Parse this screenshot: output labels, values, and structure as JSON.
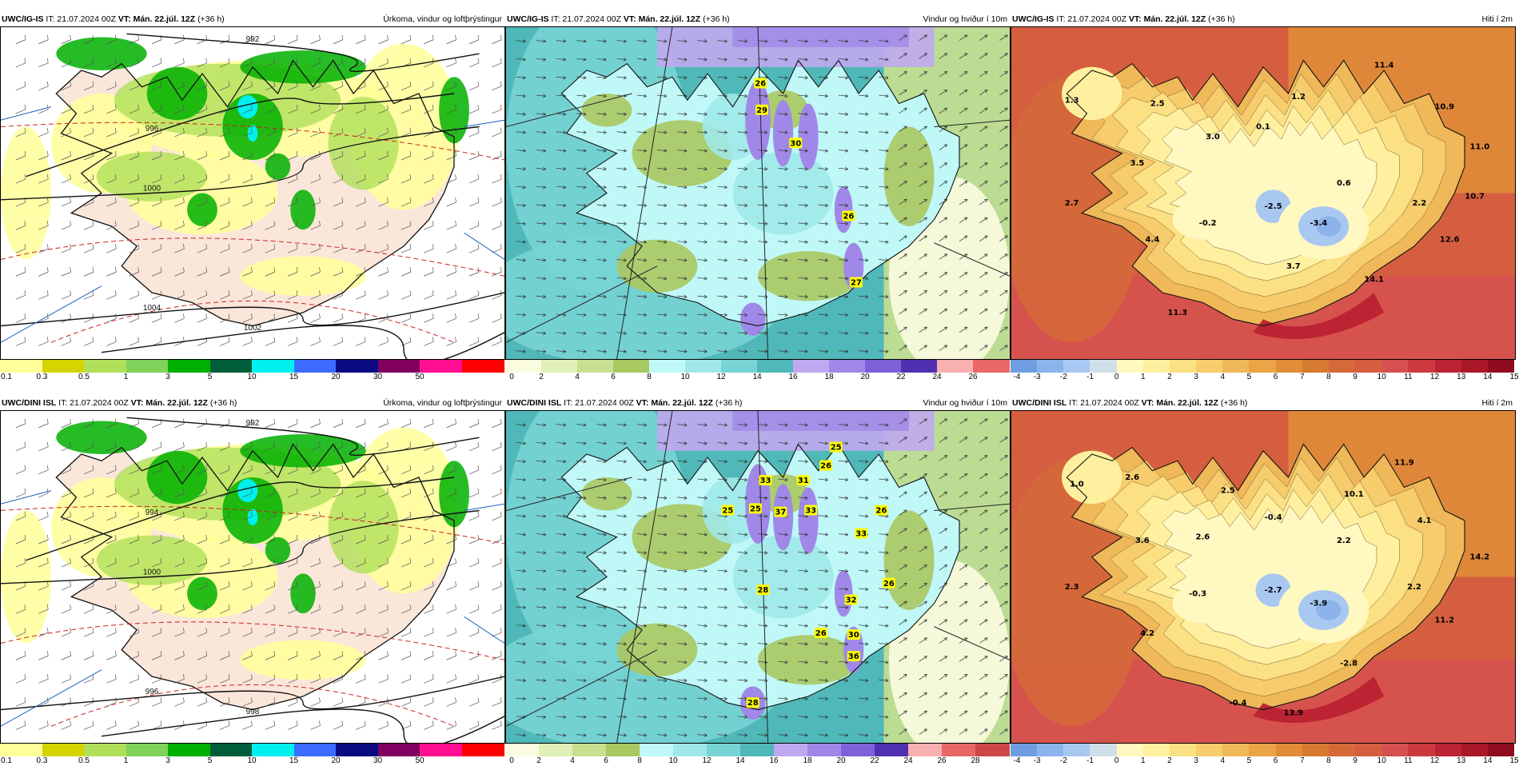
{
  "panels": [
    {
      "id": "p0",
      "model": "UWC/IG-IS",
      "it": "IT: 21.07.2024 00Z",
      "vt_label": "VT:",
      "vt": "Mán. 22.júl. 12Z",
      "lead": "(+36 h)",
      "product": "Úrkoma, vindur og loftþrýstingur",
      "type": "precip",
      "colors": [
        "#ffff99",
        "#d4d400",
        "#b0e05a",
        "#7fd25a",
        "#00b000",
        "#005e3a",
        "#00f0f0",
        "#3b6cff",
        "#0a0a80",
        "#800060",
        "#ff1090",
        "#ff0000"
      ],
      "labels": [
        "0.1",
        "0.3",
        "0.5",
        "1",
        "3",
        "5",
        "10",
        "15",
        "20",
        "30",
        "50"
      ],
      "isobars": [
        "992",
        "996",
        "1000",
        "1004",
        "1002"
      ],
      "values": []
    },
    {
      "id": "p1",
      "model": "UWC/IG-IS",
      "it": "IT: 21.07.2024 00Z",
      "vt_label": "VT:",
      "vt": "Mán. 22.júl. 12Z",
      "lead": "(+36 h)",
      "product": "Vindur og hviður í 10m",
      "type": "wind",
      "colors": [
        "#fbfbe0",
        "#e0f0b8",
        "#c8e090",
        "#a8c860",
        "#c0f8f8",
        "#a0e8e8",
        "#78d4d4",
        "#50b8b8",
        "#c0a8f0",
        "#a088e8",
        "#8060d8",
        "#5030b0",
        "#f8b0b0",
        "#e86868"
      ],
      "labels": [
        "0",
        "2",
        "4",
        "6",
        "8",
        "10",
        "12",
        "14",
        "16",
        "18",
        "20",
        "22",
        "24",
        "26"
      ],
      "values": [
        {
          "v": "26",
          "x": 0.505,
          "y": 0.17
        },
        {
          "v": "29",
          "x": 0.508,
          "y": 0.25
        },
        {
          "v": "30",
          "x": 0.575,
          "y": 0.35
        },
        {
          "v": "26",
          "x": 0.68,
          "y": 0.57
        },
        {
          "v": "27",
          "x": 0.695,
          "y": 0.77
        }
      ]
    },
    {
      "id": "p2",
      "model": "UWC/IG-IS",
      "it": "IT: 21.07.2024 00Z",
      "vt_label": "VT:",
      "vt": "Mán. 22.júl. 12Z",
      "lead": "(+36 h)",
      "product": "Hiti í 2m",
      "type": "temp",
      "colors": [
        "#6e9ee0",
        "#8cb4ea",
        "#a8c8f2",
        "#d0e0e8",
        "#fff8c0",
        "#fff0a0",
        "#fbe084",
        "#f6cc6c",
        "#efb858",
        "#e9a446",
        "#e08c38",
        "#d67a30",
        "#d46a38",
        "#d65e40",
        "#d65050",
        "#cc3a40",
        "#bc2434",
        "#a81828",
        "#8e0c1e"
      ],
      "labels": [
        "-4",
        "-3",
        "-2",
        "-1",
        "0",
        "1",
        "2",
        "3",
        "4",
        "5",
        "6",
        "7",
        "8",
        "9",
        "10",
        "11",
        "12",
        "13",
        "14",
        "15"
      ],
      "values": [
        {
          "v": "1.3",
          "x": 0.12,
          "y": 0.22
        },
        {
          "v": "2.5",
          "x": 0.29,
          "y": 0.23
        },
        {
          "v": "1.2",
          "x": 0.57,
          "y": 0.21
        },
        {
          "v": "11.4",
          "x": 0.74,
          "y": 0.115
        },
        {
          "v": "10.9",
          "x": 0.86,
          "y": 0.24
        },
        {
          "v": "0.1",
          "x": 0.5,
          "y": 0.3
        },
        {
          "v": "3.0",
          "x": 0.4,
          "y": 0.33
        },
        {
          "v": "11.0",
          "x": 0.93,
          "y": 0.36
        },
        {
          "v": "3.5",
          "x": 0.25,
          "y": 0.41
        },
        {
          "v": "0.6",
          "x": 0.66,
          "y": 0.47
        },
        {
          "v": "2.7",
          "x": 0.12,
          "y": 0.53
        },
        {
          "v": "10.7",
          "x": 0.92,
          "y": 0.51
        },
        {
          "v": "2.2",
          "x": 0.81,
          "y": 0.53
        },
        {
          "v": "-0.2",
          "x": 0.39,
          "y": 0.59
        },
        {
          "v": "-2.5",
          "x": 0.52,
          "y": 0.54
        },
        {
          "v": "-3.4",
          "x": 0.61,
          "y": 0.59
        },
        {
          "v": "4.4",
          "x": 0.28,
          "y": 0.64
        },
        {
          "v": "12.6",
          "x": 0.87,
          "y": 0.64
        },
        {
          "v": "3.7",
          "x": 0.56,
          "y": 0.72
        },
        {
          "v": "14.1",
          "x": 0.72,
          "y": 0.76
        },
        {
          "v": "11.3",
          "x": 0.33,
          "y": 0.86
        }
      ]
    },
    {
      "id": "p3",
      "model": "UWC/DINI ISL",
      "it": "IT: 21.07.2024 00Z",
      "vt_label": "VT:",
      "vt": "Mán. 22.júl. 12Z",
      "lead": "(+36 h)",
      "product": "Úrkoma, vindur og loftþrýstingur",
      "type": "precip",
      "colors": [
        "#ffff99",
        "#d4d400",
        "#b0e05a",
        "#7fd25a",
        "#00b000",
        "#005e3a",
        "#00f0f0",
        "#3b6cff",
        "#0a0a80",
        "#800060",
        "#ff1090",
        "#ff0000"
      ],
      "labels": [
        "0.1",
        "0.3",
        "0.5",
        "1",
        "3",
        "5",
        "10",
        "15",
        "20",
        "30",
        "50"
      ],
      "isobars": [
        "992",
        "994",
        "1000",
        "996",
        "998"
      ],
      "values": []
    },
    {
      "id": "p4",
      "model": "UWC/DINI ISL",
      "it": "IT: 21.07.2024 00Z",
      "vt_label": "VT:",
      "vt": "Mán. 22.júl. 12Z",
      "lead": "(+36 h)",
      "product": "Vindur og hviður í 10m",
      "type": "wind",
      "colors": [
        "#fbfbe0",
        "#e0f0b8",
        "#c8e090",
        "#a8c860",
        "#c0f8f8",
        "#a0e8e8",
        "#78d4d4",
        "#50b8b8",
        "#c0a8f0",
        "#a088e8",
        "#8060d8",
        "#5030b0",
        "#f8b0b0",
        "#e86868",
        "#cc4848"
      ],
      "labels": [
        "0",
        "2",
        "4",
        "6",
        "8",
        "10",
        "12",
        "14",
        "16",
        "18",
        "20",
        "22",
        "24",
        "26",
        "28"
      ],
      "values": [
        {
          "v": "25",
          "x": 0.655,
          "y": 0.11
        },
        {
          "v": "26",
          "x": 0.635,
          "y": 0.165
        },
        {
          "v": "33",
          "x": 0.515,
          "y": 0.21
        },
        {
          "v": "31",
          "x": 0.59,
          "y": 0.21
        },
        {
          "v": "25",
          "x": 0.44,
          "y": 0.3
        },
        {
          "v": "25",
          "x": 0.495,
          "y": 0.295
        },
        {
          "v": "37",
          "x": 0.545,
          "y": 0.305
        },
        {
          "v": "33",
          "x": 0.605,
          "y": 0.3
        },
        {
          "v": "26",
          "x": 0.745,
          "y": 0.3
        },
        {
          "v": "33",
          "x": 0.705,
          "y": 0.37
        },
        {
          "v": "28",
          "x": 0.51,
          "y": 0.54
        },
        {
          "v": "26",
          "x": 0.76,
          "y": 0.52
        },
        {
          "v": "32",
          "x": 0.685,
          "y": 0.57
        },
        {
          "v": "26",
          "x": 0.625,
          "y": 0.67
        },
        {
          "v": "30",
          "x": 0.69,
          "y": 0.675
        },
        {
          "v": "36",
          "x": 0.69,
          "y": 0.74
        },
        {
          "v": "28",
          "x": 0.49,
          "y": 0.88
        }
      ]
    },
    {
      "id": "p5",
      "model": "UWC/DINI ISL",
      "it": "IT: 21.07.2024 00Z",
      "vt_label": "VT:",
      "vt": "Mán. 22.júl. 12Z",
      "lead": "(+36 h)",
      "product": "Hiti í 2m",
      "type": "temp",
      "colors": [
        "#6e9ee0",
        "#8cb4ea",
        "#a8c8f2",
        "#d0e0e8",
        "#fff8c0",
        "#fff0a0",
        "#fbe084",
        "#f6cc6c",
        "#efb858",
        "#e9a446",
        "#e08c38",
        "#d67a30",
        "#d46a38",
        "#d65e40",
        "#d65050",
        "#cc3a40",
        "#bc2434",
        "#a81828",
        "#8e0c1e"
      ],
      "labels": [
        "-4",
        "-3",
        "-2",
        "-1",
        "0",
        "1",
        "2",
        "3",
        "4",
        "5",
        "6",
        "7",
        "8",
        "9",
        "10",
        "11",
        "12",
        "13",
        "14",
        "15"
      ],
      "values": [
        {
          "v": "1.0",
          "x": 0.13,
          "y": 0.22
        },
        {
          "v": "2.6",
          "x": 0.24,
          "y": 0.2
        },
        {
          "v": "11.9",
          "x": 0.78,
          "y": 0.155
        },
        {
          "v": "2.5",
          "x": 0.43,
          "y": 0.24
        },
        {
          "v": "10.1",
          "x": 0.68,
          "y": 0.25
        },
        {
          "v": "-0.4",
          "x": 0.52,
          "y": 0.32
        },
        {
          "v": "4.1",
          "x": 0.82,
          "y": 0.33
        },
        {
          "v": "3.6",
          "x": 0.26,
          "y": 0.39
        },
        {
          "v": "2.6",
          "x": 0.38,
          "y": 0.38
        },
        {
          "v": "2.2",
          "x": 0.66,
          "y": 0.39
        },
        {
          "v": "14.2",
          "x": 0.93,
          "y": 0.44
        },
        {
          "v": "2.3",
          "x": 0.12,
          "y": 0.53
        },
        {
          "v": "-0.3",
          "x": 0.37,
          "y": 0.55
        },
        {
          "v": "-2.7",
          "x": 0.52,
          "y": 0.54
        },
        {
          "v": "-3.9",
          "x": 0.61,
          "y": 0.58
        },
        {
          "v": "2.2",
          "x": 0.8,
          "y": 0.53
        },
        {
          "v": "11.2",
          "x": 0.86,
          "y": 0.63
        },
        {
          "v": "4.2",
          "x": 0.27,
          "y": 0.67
        },
        {
          "v": "-2.8",
          "x": 0.67,
          "y": 0.76
        },
        {
          "v": "-0.4",
          "x": 0.45,
          "y": 0.88
        },
        {
          "v": "13.9",
          "x": 0.56,
          "y": 0.91
        }
      ]
    }
  ]
}
